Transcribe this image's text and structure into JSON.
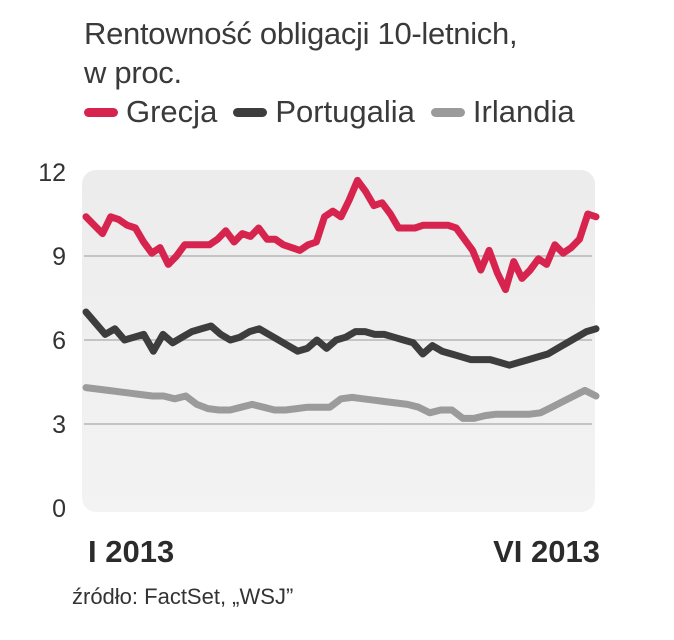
{
  "title_line1": "Rentowność obligacji 10-letnich,",
  "title_line2": "w proc.",
  "source": "źródło: FactSet, „WSJ”",
  "chart_data": {
    "type": "line",
    "ylim": [
      0,
      12
    ],
    "y_ticks": [
      "0",
      "3",
      "6",
      "9",
      "12"
    ],
    "x_range_labels": [
      "I 2013",
      "VI 2013"
    ],
    "grid": true,
    "legend_position": "top",
    "series": [
      {
        "name": "Grecja",
        "color": "#d6244f",
        "values": [
          10.4,
          10.1,
          9.8,
          10.4,
          10.3,
          10.1,
          10.0,
          9.5,
          9.1,
          9.3,
          8.7,
          9.0,
          9.4,
          9.4,
          9.4,
          9.4,
          9.6,
          9.9,
          9.5,
          9.8,
          9.7,
          10.0,
          9.6,
          9.6,
          9.4,
          9.3,
          9.2,
          9.4,
          9.5,
          10.4,
          10.6,
          10.4,
          11.0,
          11.7,
          11.3,
          10.8,
          10.9,
          10.5,
          10.0,
          10.0,
          10.0,
          10.1,
          10.1,
          10.1,
          10.1,
          10.0,
          9.6,
          9.2,
          8.5,
          9.2,
          8.4,
          7.8,
          8.8,
          8.2,
          8.5,
          8.9,
          8.7,
          9.4,
          9.1,
          9.3,
          9.6,
          10.5,
          10.4
        ]
      },
      {
        "name": "Portugalia",
        "color": "#3d3d3d",
        "values": [
          7.0,
          6.6,
          6.2,
          6.4,
          6.0,
          6.1,
          6.2,
          5.6,
          6.2,
          5.9,
          6.1,
          6.3,
          6.4,
          6.5,
          6.2,
          6.0,
          6.1,
          6.3,
          6.4,
          6.2,
          6.0,
          5.8,
          5.6,
          5.7,
          6.0,
          5.7,
          6.0,
          6.1,
          6.3,
          6.3,
          6.2,
          6.2,
          6.1,
          6.0,
          5.9,
          5.5,
          5.8,
          5.6,
          5.5,
          5.4,
          5.3,
          5.3,
          5.3,
          5.2,
          5.1,
          5.2,
          5.3,
          5.4,
          5.5,
          5.7,
          5.9,
          6.1,
          6.3,
          6.4
        ]
      },
      {
        "name": "Irlandia",
        "color": "#9b9b9b",
        "values": [
          4.3,
          4.25,
          4.2,
          4.15,
          4.1,
          4.05,
          4.0,
          4.0,
          3.9,
          4.0,
          3.7,
          3.55,
          3.5,
          3.5,
          3.6,
          3.7,
          3.6,
          3.5,
          3.5,
          3.55,
          3.6,
          3.6,
          3.6,
          3.9,
          3.95,
          3.9,
          3.85,
          3.8,
          3.75,
          3.7,
          3.6,
          3.4,
          3.5,
          3.5,
          3.2,
          3.2,
          3.3,
          3.35,
          3.35,
          3.35,
          3.35,
          3.4,
          3.6,
          3.8,
          4.0,
          4.2,
          4.0
        ]
      }
    ]
  }
}
